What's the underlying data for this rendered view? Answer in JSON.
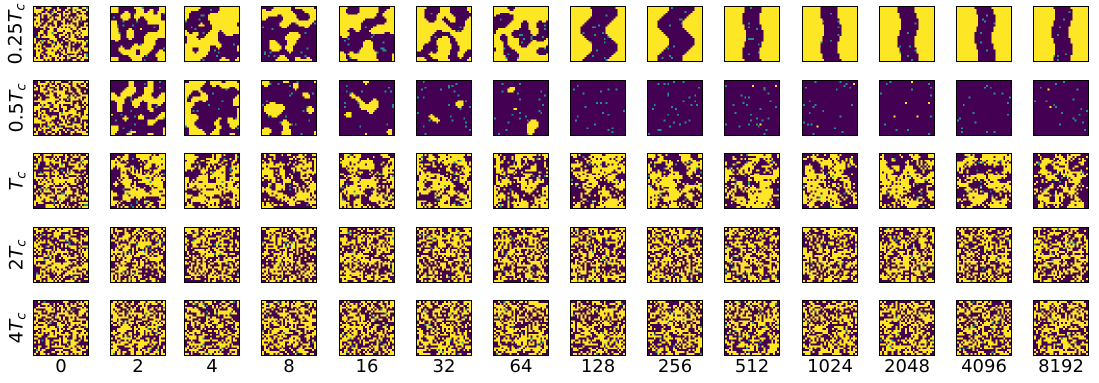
{
  "figure": {
    "colors": {
      "low_spin": "#440154",
      "high_spin": "#fde725",
      "mid": "#21918c"
    },
    "rows": [
      {
        "prefix": "0.25",
        "symbol": "T",
        "subscript": "c",
        "order_bias": "coarsening_to_stripe"
      },
      {
        "prefix": "0.5",
        "symbol": "T",
        "subscript": "c",
        "order_bias": "coarsening_to_uniform"
      },
      {
        "prefix": "",
        "symbol": "T",
        "subscript": "c",
        "order_bias": "critical_clusters"
      },
      {
        "prefix": "2",
        "symbol": "T",
        "subscript": "c",
        "order_bias": "disordered"
      },
      {
        "prefix": "4",
        "symbol": "T",
        "subscript": "c",
        "order_bias": "disordered"
      }
    ],
    "columns": [
      "0",
      "2",
      "4",
      "8",
      "16",
      "32",
      "64",
      "128",
      "256",
      "512",
      "1024",
      "2048",
      "4096",
      "8192"
    ]
  }
}
